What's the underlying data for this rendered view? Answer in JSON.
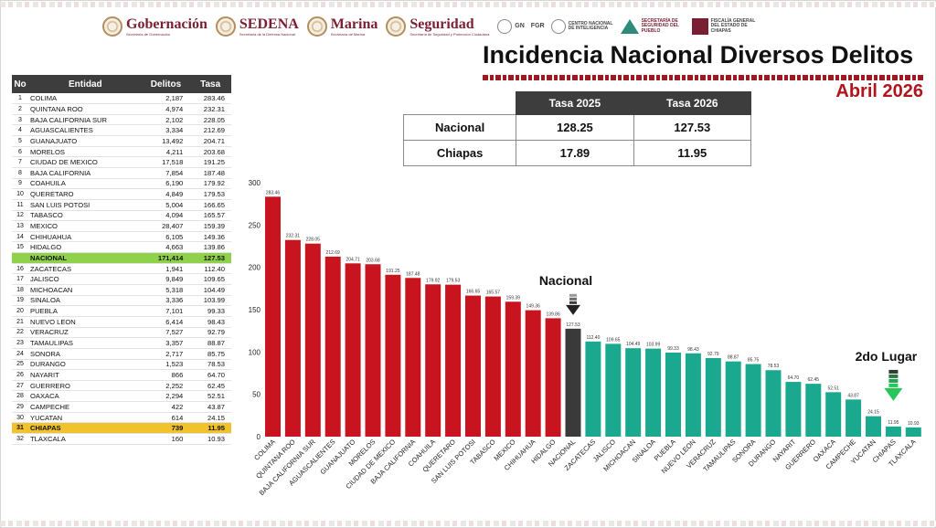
{
  "header": {
    "logos": [
      {
        "name": "Gobernación",
        "sub": "Secretaría de Gobernación"
      },
      {
        "name": "SEDENA",
        "sub": "Secretaría de la Defensa Nacional"
      },
      {
        "name": "Marina",
        "sub": "Secretaría de Marina"
      },
      {
        "name": "Seguridad",
        "sub": "Secretaría de Seguridad y Protección Ciudadana"
      }
    ],
    "mini_logos": [
      "GN",
      "FGR",
      "CENTRO NACIONAL DE INTELIGENCIA",
      "SECRETARÍA DE SEGURIDAD DEL PUEBLO",
      "FISCALÍA GENERAL DEL ESTADO DE CHIAPAS"
    ]
  },
  "title": "Incidencia Nacional Diversos Delitos",
  "subtitle": "Abril 2026",
  "ranking_table": {
    "headers": [
      "No",
      "Entidad",
      "Delitos",
      "Tasa"
    ],
    "rows": [
      [
        "1",
        "COLIMA",
        "2,187",
        "283.46"
      ],
      [
        "2",
        "QUINTANA ROO",
        "4,974",
        "232.31"
      ],
      [
        "3",
        "BAJA CALIFORNIA SUR",
        "2,102",
        "228.05"
      ],
      [
        "4",
        "AGUASCALIENTES",
        "3,334",
        "212.69"
      ],
      [
        "5",
        "GUANAJUATO",
        "13,492",
        "204.71"
      ],
      [
        "6",
        "MORELOS",
        "4,211",
        "203.68"
      ],
      [
        "7",
        "CIUDAD DE MEXICO",
        "17,518",
        "191.25"
      ],
      [
        "8",
        "BAJA CALIFORNIA",
        "7,854",
        "187.48"
      ],
      [
        "9",
        "COAHUILA",
        "6,190",
        "179.92"
      ],
      [
        "10",
        "QUERETARO",
        "4,849",
        "179.53"
      ],
      [
        "11",
        "SAN LUIS POTOSI",
        "5,004",
        "166.65"
      ],
      [
        "12",
        "TABASCO",
        "4,094",
        "165.57"
      ],
      [
        "13",
        "MEXICO",
        "28,407",
        "159.39"
      ],
      [
        "14",
        "CHIHUAHUA",
        "6,105",
        "149.36"
      ],
      [
        "15",
        "HIDALGO",
        "4,663",
        "139.86"
      ],
      [
        "",
        "NACIONAL",
        "171,414",
        "127.53"
      ],
      [
        "16",
        "ZACATECAS",
        "1,941",
        "112.40"
      ],
      [
        "17",
        "JALISCO",
        "9,849",
        "109.65"
      ],
      [
        "18",
        "MICHOACAN",
        "5,318",
        "104.49"
      ],
      [
        "19",
        "SINALOA",
        "3,336",
        "103.99"
      ],
      [
        "20",
        "PUEBLA",
        "7,101",
        "99.33"
      ],
      [
        "21",
        "NUEVO LEON",
        "6,414",
        "98.43"
      ],
      [
        "22",
        "VERACRUZ",
        "7,527",
        "92.79"
      ],
      [
        "23",
        "TAMAULIPAS",
        "3,357",
        "88.87"
      ],
      [
        "24",
        "SONORA",
        "2,717",
        "85.75"
      ],
      [
        "25",
        "DURANGO",
        "1,523",
        "78.53"
      ],
      [
        "26",
        "NAYARIT",
        "866",
        "64.70"
      ],
      [
        "27",
        "GUERRERO",
        "2,252",
        "62.45"
      ],
      [
        "28",
        "OAXACA",
        "2,294",
        "52.51"
      ],
      [
        "29",
        "CAMPECHE",
        "422",
        "43.87"
      ],
      [
        "30",
        "YUCATAN",
        "614",
        "24.15"
      ],
      [
        "31",
        "CHIAPAS",
        "739",
        "11.95"
      ],
      [
        "32",
        "TLAXCALA",
        "160",
        "10.93"
      ]
    ]
  },
  "summary_table": {
    "headers": [
      "",
      "Tasa 2025",
      "Tasa 2026"
    ],
    "rows": [
      [
        "Nacional",
        "128.25",
        "127.53"
      ],
      [
        "Chiapas",
        "17.89",
        "11.95"
      ]
    ]
  },
  "colors": {
    "above": "#c8141e",
    "national": "#3a3a3a",
    "below": "#1aa88f",
    "national_row": "#8fd14a",
    "chiapas_row": "#f2c22c",
    "marker_down": "#26c65a"
  },
  "chart_data": {
    "type": "bar",
    "categories": [
      "COLIMA",
      "QUINTANA ROO",
      "BAJA CALIFORNIA SUR",
      "AGUASCALIENTES",
      "GUANAJUATO",
      "MORELOS",
      "CIUDAD DE MEXICO",
      "BAJA CALIFORNIA",
      "COAHUILA",
      "QUERETARO",
      "SAN LUIS POTOSI",
      "TABASCO",
      "MEXICO",
      "CHIHUAHUA",
      "HIDALGO",
      "NACIONAL",
      "ZACATECAS",
      "JALISCO",
      "MICHOACAN",
      "SINALOA",
      "PUEBLA",
      "NUEVO LEON",
      "VERACRUZ",
      "TAMAULIPAS",
      "SONORA",
      "DURANGO",
      "NAYARIT",
      "GUERRERO",
      "OAXACA",
      "CAMPECHE",
      "YUCATAN",
      "CHIAPAS",
      "TLAXCALA"
    ],
    "values": [
      283.46,
      232.31,
      228.05,
      212.69,
      204.71,
      203.68,
      191.25,
      187.48,
      179.92,
      179.53,
      166.65,
      165.57,
      159.39,
      149.36,
      139.86,
      127.53,
      112.4,
      109.65,
      104.49,
      103.99,
      99.33,
      98.43,
      92.79,
      88.87,
      85.75,
      78.53,
      64.7,
      62.45,
      52.51,
      43.87,
      24.15,
      11.95,
      10.93
    ],
    "value_labels": [
      "283.46",
      "232.31",
      "228.05",
      "212.69",
      "204.71",
      "203.68",
      "191.25",
      "187.48",
      "179.92",
      "179.53",
      "166.65",
      "165.57",
      "159.39",
      "149.36",
      "139.86",
      "127.53",
      "112.40",
      "109.65",
      "104.49",
      "103.99",
      "99.33",
      "98.43",
      "92.79",
      "88.87",
      "85.75",
      "78.53",
      "64.70",
      "62.45",
      "52.51",
      "43.87",
      "24.15",
      "11.95",
      "10.93"
    ],
    "ylim": [
      0,
      300
    ],
    "yticks": [
      "0",
      "50",
      "100",
      "150",
      "200",
      "250",
      "300"
    ],
    "grid": false,
    "legend": "none",
    "annotations": [
      {
        "text": "Nacional",
        "target": "NACIONAL"
      },
      {
        "text": "2do Lugar",
        "target": "CHIAPAS"
      }
    ]
  }
}
